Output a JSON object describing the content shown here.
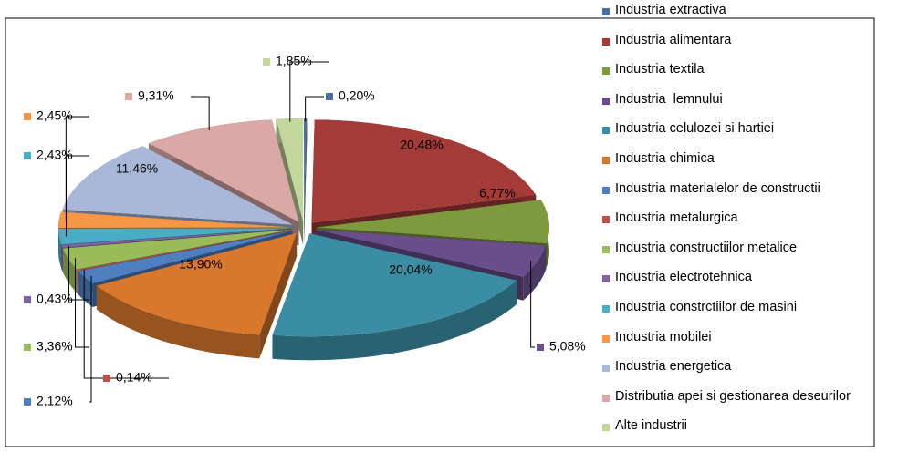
{
  "chart_data": {
    "type": "pie3d",
    "categories": [
      "Industria extractiva",
      "Industria alimentara",
      "Industria textila",
      "Industria  lemnului",
      "Industria celulozei si hartiei",
      "Industria chimica",
      "Industria materialelor de constructii",
      "Industria metalurgica",
      "Industria constructiilor metalice",
      "Industria electrotehnica",
      "Industria constrctiilor de masini",
      "Industria mobilei",
      "Industria energetica",
      "Distributia apei si gestionarea deseurilor",
      "Alte industrii"
    ],
    "values": [
      0.2,
      20.48,
      6.77,
      5.08,
      20.04,
      13.9,
      2.12,
      0.14,
      3.36,
      0.43,
      2.43,
      2.45,
      11.46,
      9.31,
      1.85
    ],
    "value_labels": [
      "0,20%",
      "20,48%",
      "6,77%",
      "5,08%",
      "20,04%",
      "13,90%",
      "2,12%",
      "0,14%",
      "3,36%",
      "0,43%",
      "2,43%",
      "2,45%",
      "11,46%",
      "9,31%",
      "1,85%"
    ],
    "colors": [
      "#4a6fa5",
      "#a33b39",
      "#7e9a3e",
      "#6a4e8c",
      "#3a8da3",
      "#d9782d",
      "#4f7fc1",
      "#c24f4c",
      "#9bbb59",
      "#8064a2",
      "#4bacc6",
      "#f79646",
      "#a9b8d9",
      "#d9a8a7",
      "#c3d69b"
    ],
    "legend": "right"
  }
}
